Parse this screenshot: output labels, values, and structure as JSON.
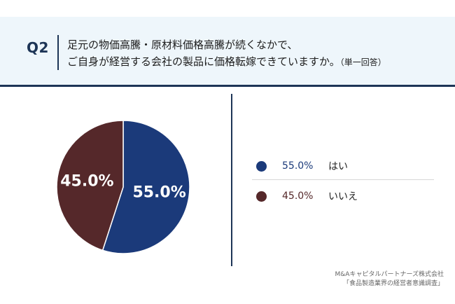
{
  "header": {
    "q_label": "Q2",
    "question_line1": "足元の物価高騰・原材料価格高騰が続くなかで、",
    "question_line2": "ご自身が経営する会社の製品に価格転嫁できていますか。",
    "question_note": "（単一回答）"
  },
  "chart_data": {
    "type": "pie",
    "slices": [
      {
        "label": "はい",
        "value": 55.0,
        "display": "55.0%",
        "color": "#1b3a7a"
      },
      {
        "label": "いいえ",
        "value": 45.0,
        "display": "45.0%",
        "color": "#55282a"
      }
    ],
    "legend_placement": "right"
  },
  "legend": [
    {
      "value": "55.0%",
      "label": "はい",
      "color": "#1b3a7a"
    },
    {
      "value": "45.0%",
      "label": "いいえ",
      "color": "#55282a"
    }
  ],
  "source": {
    "line1": "M&Aキャピタルパートナーズ株式会社",
    "line2": "「食品製造業界の経営者意識調査」"
  }
}
